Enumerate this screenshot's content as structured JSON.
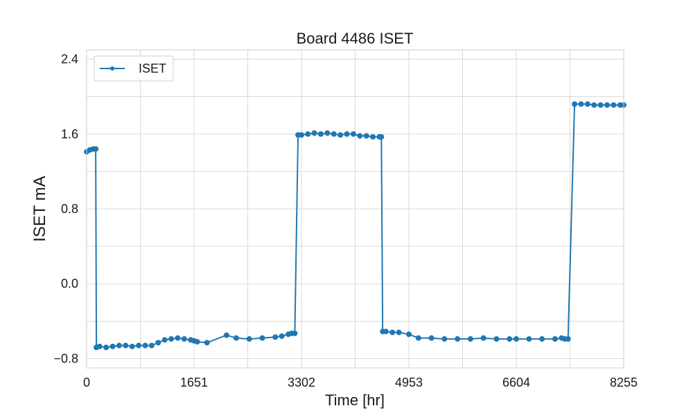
{
  "chart_data": {
    "type": "line",
    "title": "Board 4486 ISET",
    "xlabel": "Time [hr]",
    "ylabel": "ISET mA",
    "xlim": [
      0,
      8255
    ],
    "ylim": [
      -0.9,
      2.5
    ],
    "xticks": [
      0,
      1651,
      3302,
      4953,
      6604,
      8255
    ],
    "xtick_labels": [
      "0",
      "1651",
      "3302",
      "4953",
      "6604",
      "8255"
    ],
    "yticks": [
      -0.8,
      0.0,
      0.8,
      1.6,
      2.4
    ],
    "ytick_labels": [
      "−0.8",
      "0.0",
      "0.8",
      "1.6",
      "2.4"
    ],
    "grid": true,
    "legend_position": "top-left",
    "series": [
      {
        "name": "ISET",
        "color": "#1f77b4",
        "marker": "circle",
        "x": [
          0,
          50,
          100,
          140,
          150,
          200,
          300,
          400,
          500,
          600,
          700,
          800,
          900,
          1000,
          1100,
          1200,
          1300,
          1400,
          1500,
          1600,
          1651,
          1700,
          1850,
          2150,
          2300,
          2500,
          2700,
          2900,
          3000,
          3100,
          3150,
          3200,
          3250,
          3302,
          3400,
          3500,
          3600,
          3700,
          3800,
          3900,
          4000,
          4100,
          4200,
          4300,
          4400,
          4500,
          4530,
          4550,
          4600,
          4700,
          4800,
          4953,
          5100,
          5300,
          5500,
          5700,
          5900,
          6100,
          6300,
          6500,
          6604,
          6800,
          7000,
          7200,
          7300,
          7350,
          7400,
          7500,
          7600,
          7700,
          7800,
          7900,
          8000,
          8100,
          8200,
          8255
        ],
        "y": [
          1.41,
          1.43,
          1.44,
          1.44,
          -0.68,
          -0.67,
          -0.68,
          -0.67,
          -0.66,
          -0.66,
          -0.67,
          -0.66,
          -0.66,
          -0.66,
          -0.63,
          -0.6,
          -0.59,
          -0.58,
          -0.59,
          -0.6,
          -0.61,
          -0.62,
          -0.63,
          -0.55,
          -0.58,
          -0.59,
          -0.58,
          -0.57,
          -0.56,
          -0.54,
          -0.53,
          -0.53,
          1.59,
          1.59,
          1.6,
          1.61,
          1.6,
          1.61,
          1.6,
          1.59,
          1.6,
          1.6,
          1.58,
          1.58,
          1.57,
          1.57,
          1.57,
          -0.51,
          -0.51,
          -0.52,
          -0.52,
          -0.54,
          -0.58,
          -0.58,
          -0.59,
          -0.59,
          -0.59,
          -0.58,
          -0.59,
          -0.59,
          -0.59,
          -0.59,
          -0.59,
          -0.59,
          -0.58,
          -0.59,
          -0.59,
          1.92,
          1.92,
          1.92,
          1.91,
          1.91,
          1.91,
          1.91,
          1.91,
          1.91
        ]
      }
    ]
  }
}
